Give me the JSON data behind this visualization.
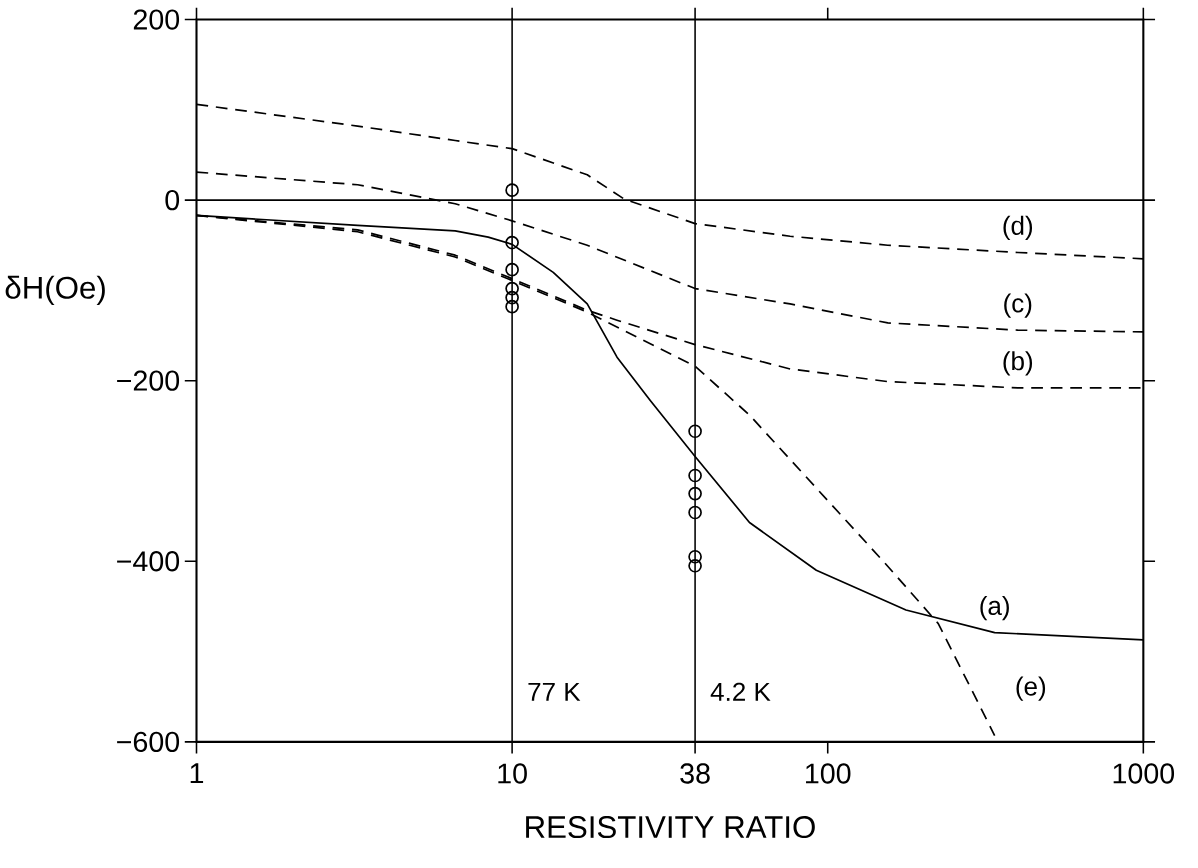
{
  "chart_data": {
    "type": "line",
    "xlabel": "RESISTIVITY RATIO",
    "ylabel": "δH(Oe)",
    "log": "x",
    "xlim": [
      1,
      1000
    ],
    "xticks": [
      1,
      10,
      38,
      100,
      1000
    ],
    "ylim": [
      -600,
      200
    ],
    "yticks": [
      {
        "value": 200,
        "label": "200"
      },
      {
        "value": 0,
        "label": "0"
      },
      {
        "value": -200,
        "label": "−200"
      },
      {
        "value": -400,
        "label": "−400"
      },
      {
        "value": -600,
        "label": "−600"
      }
    ],
    "ref_lines": [
      {
        "axis": "x",
        "value": 10,
        "label": "77 K"
      },
      {
        "axis": "x",
        "value": 38,
        "label": "4.2 K"
      },
      {
        "axis": "y",
        "value": 0
      }
    ],
    "series": [
      {
        "name": "(d)",
        "color": "#000000",
        "line_style": "dashed",
        "x": [
          1,
          3.24,
          6.6,
          10,
          17.3,
          22.7,
          38,
          76,
          155,
          400,
          1000
        ],
        "values": [
          106,
          82,
          66,
          57,
          28,
          1,
          -26,
          -40,
          -50,
          -58,
          -65
        ]
      },
      {
        "name": "(c)",
        "color": "#000000",
        "line_style": "dashed",
        "x": [
          1,
          3.24,
          6.6,
          10,
          17.3,
          38,
          76,
          155,
          400,
          1000
        ],
        "values": [
          31,
          17,
          -4,
          -23,
          -50,
          -98,
          -115,
          -136,
          -144,
          -146
        ]
      },
      {
        "name": "(b)",
        "color": "#000000",
        "line_style": "dashed",
        "x": [
          1,
          3.24,
          6.6,
          10,
          17.3,
          21.5,
          38,
          76,
          155,
          400,
          1000
        ],
        "values": [
          -17,
          -33,
          -61,
          -87,
          -122,
          -133,
          -160,
          -187,
          -201,
          -208,
          -208
        ]
      },
      {
        "name": "(a)",
        "color": "#000000",
        "line_style": "solid",
        "x": [
          1,
          3.24,
          6.6,
          8.4,
          10,
          13.5,
          17.3,
          21.5,
          27.4,
          38,
          56.5,
          92,
          177,
          338,
          1000
        ],
        "values": [
          -17,
          -28,
          -34,
          -41,
          -49,
          -80,
          -115,
          -174,
          -222,
          -284,
          -357,
          -410,
          -454,
          -479,
          -487
        ]
      },
      {
        "name": "(e)",
        "color": "#000000",
        "line_style": "dashed",
        "x": [
          1,
          3.24,
          6.6,
          10,
          17.3,
          38,
          56.5,
          150,
          224,
          338
        ],
        "values": [
          -17,
          -35,
          -63,
          -89,
          -124,
          -184,
          -238,
          -400,
          -469,
          -593
        ]
      },
      {
        "type": "scatter",
        "marker": "circle",
        "color": "#000000",
        "x": [
          10,
          10,
          10,
          10,
          10,
          10,
          38,
          38,
          38,
          38,
          38,
          38
        ],
        "values": [
          11,
          -47,
          -77,
          -98,
          -108,
          -118,
          -256,
          -305,
          -325,
          -346,
          -395,
          -405
        ]
      }
    ]
  }
}
